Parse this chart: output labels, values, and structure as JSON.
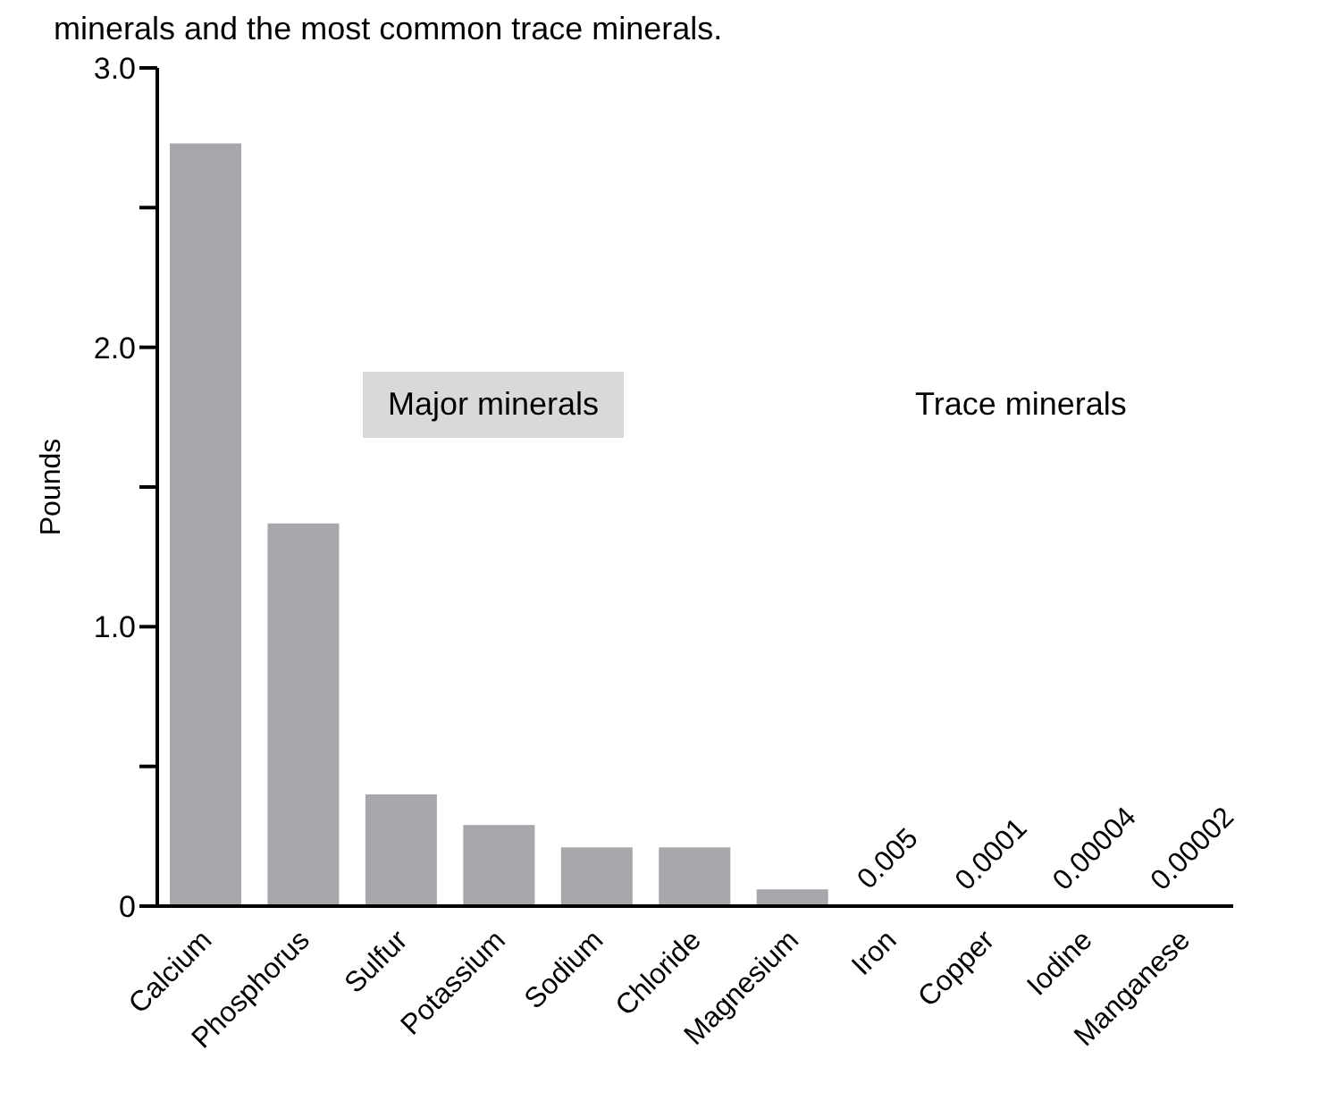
{
  "chart_data": {
    "type": "bar",
    "title": "minerals and the most common trace minerals.",
    "ylabel": "Pounds",
    "categories": [
      "Calcium",
      "Phosphorus",
      "Sulfur",
      "Potassium",
      "Sodium",
      "Chloride",
      "Magnesium",
      "Iron",
      "Copper",
      "Iodine",
      "Manganese"
    ],
    "values": [
      2.73,
      1.37,
      0.4,
      0.29,
      0.21,
      0.21,
      0.06,
      0.005,
      0.0001,
      4e-05,
      2e-05
    ],
    "value_labels": [
      null,
      null,
      null,
      null,
      null,
      null,
      null,
      "0.005",
      "0.0001",
      "0.00004",
      "0.00002"
    ],
    "color": "#a7a8ab",
    "ylim": [
      0,
      3
    ],
    "yticks": [
      0,
      {
        "value": 0.5,
        "label": null
      },
      {
        "value": 1,
        "label": "1.0"
      },
      {
        "value": 1.5,
        "label": null
      },
      {
        "value": 2,
        "label": "2.0"
      },
      {
        "value": 2.5,
        "label": null
      },
      {
        "value": 3,
        "label": "3.0"
      }
    ],
    "annotations": [
      "Major minerals",
      "Trace minerals"
    ],
    "grid": false,
    "legend": false
  }
}
